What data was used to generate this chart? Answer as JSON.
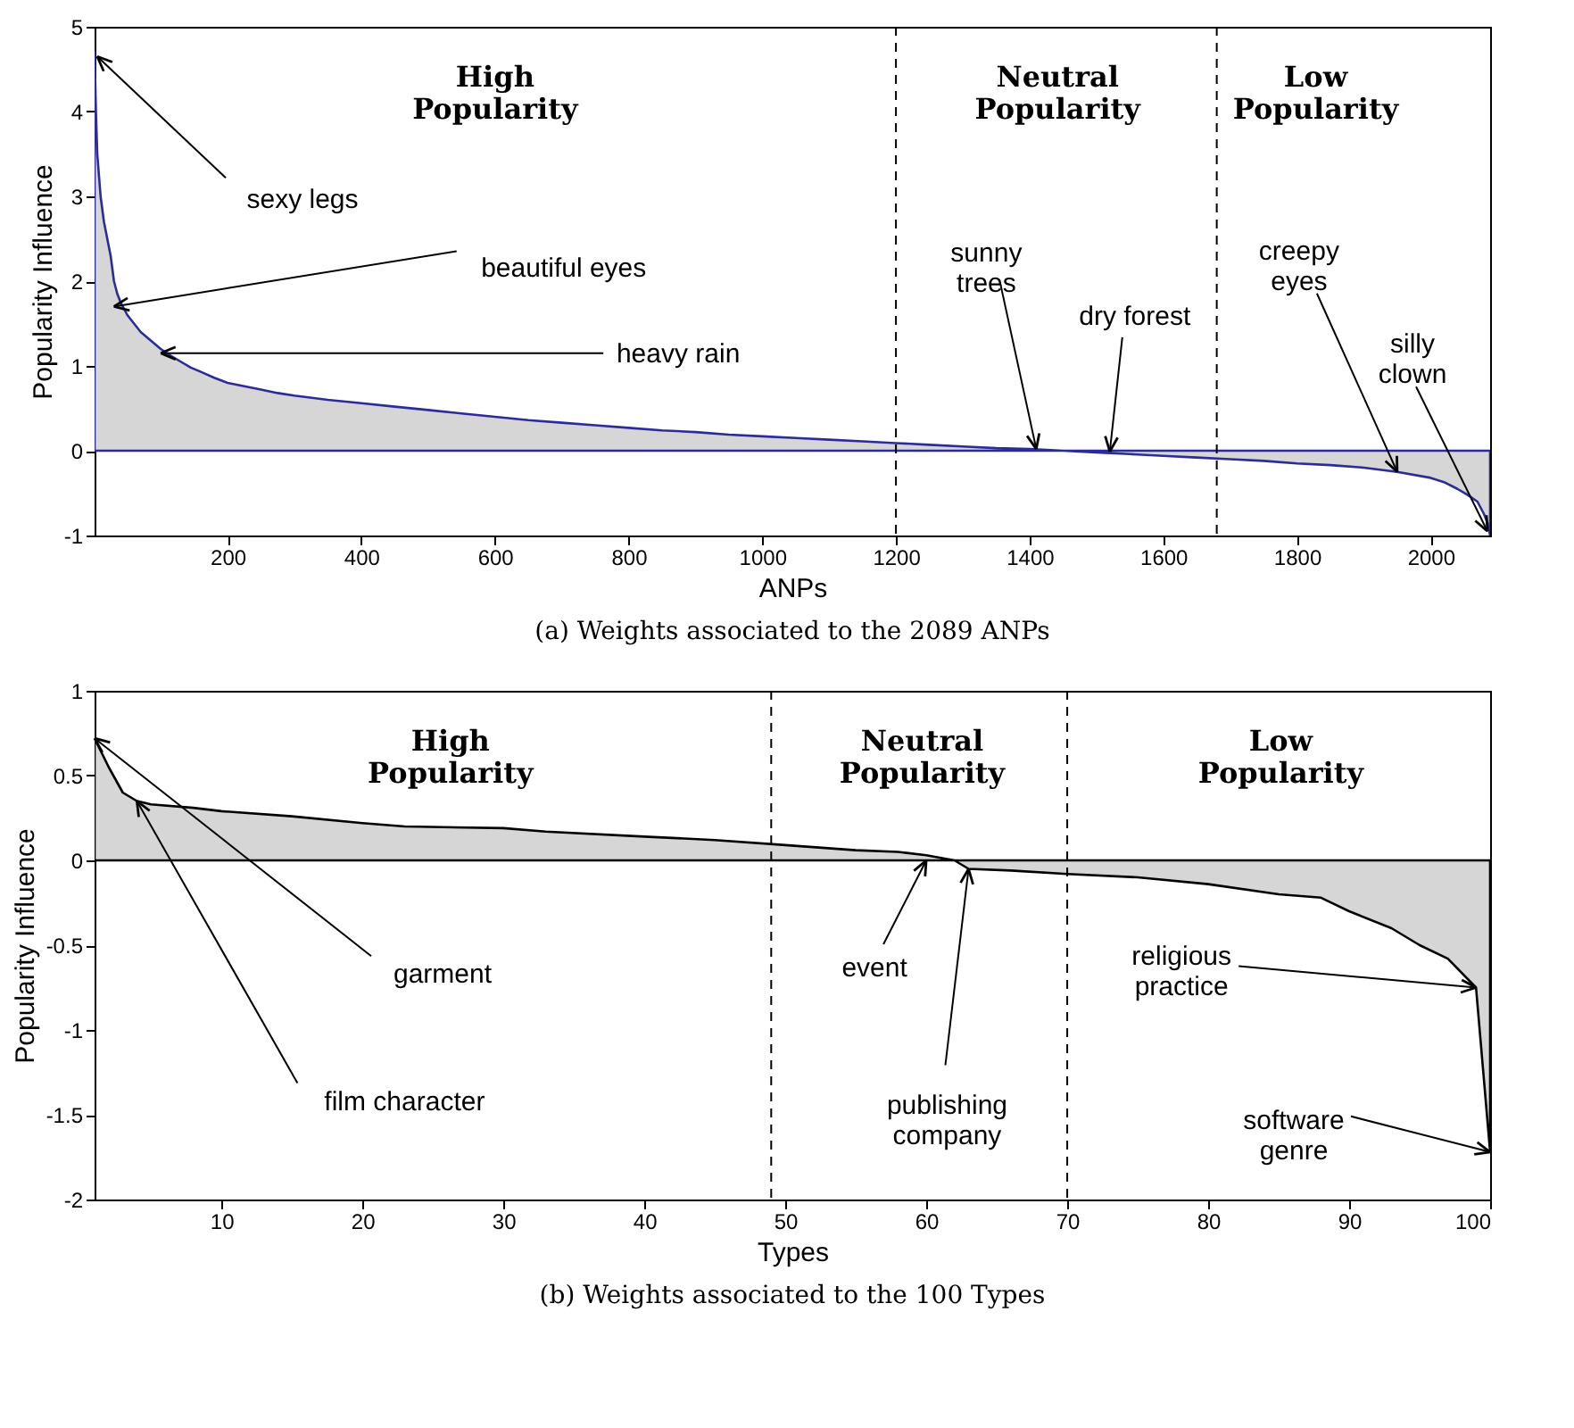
{
  "chart_data": [
    {
      "type": "area",
      "title": "(a) Weights associated to the 2089 ANPs",
      "xlabel": "ANPs",
      "ylabel": "Popularity Influence",
      "xlim": [
        1,
        2089
      ],
      "xticks": [
        200,
        400,
        600,
        800,
        1000,
        1200,
        1400,
        1600,
        1800,
        2000
      ],
      "ylim": [
        -1,
        5
      ],
      "yticks": [
        -1,
        0,
        1,
        2,
        3,
        4,
        5
      ],
      "x": [
        1,
        3,
        5,
        8,
        10,
        15,
        20,
        25,
        30,
        35,
        40,
        50,
        60,
        70,
        85,
        100,
        115,
        130,
        145,
        160,
        180,
        200,
        225,
        250,
        275,
        300,
        350,
        400,
        450,
        500,
        550,
        600,
        650,
        700,
        750,
        800,
        850,
        900,
        950,
        1000,
        1050,
        1100,
        1150,
        1200,
        1250,
        1300,
        1350,
        1400,
        1450,
        1500,
        1550,
        1600,
        1650,
        1700,
        1750,
        1800,
        1850,
        1900,
        1950,
        2000,
        2020,
        2040,
        2055,
        2070,
        2080,
        2085,
        2089
      ],
      "series": [
        {
          "color": "#2b2b9b",
          "values": [
            4.7,
            4.0,
            3.5,
            3.2,
            3.0,
            2.7,
            2.5,
            2.3,
            2.0,
            1.85,
            1.75,
            1.6,
            1.5,
            1.4,
            1.3,
            1.2,
            1.12,
            1.05,
            0.98,
            0.93,
            0.86,
            0.8,
            0.76,
            0.72,
            0.68,
            0.65,
            0.6,
            0.56,
            0.52,
            0.48,
            0.44,
            0.4,
            0.36,
            0.33,
            0.3,
            0.27,
            0.24,
            0.22,
            0.19,
            0.17,
            0.15,
            0.13,
            0.11,
            0.09,
            0.07,
            0.05,
            0.03,
            0.02,
            0.0,
            -0.02,
            -0.04,
            -0.06,
            -0.08,
            -0.1,
            -0.12,
            -0.15,
            -0.17,
            -0.2,
            -0.25,
            -0.32,
            -0.37,
            -0.45,
            -0.52,
            -0.6,
            -0.75,
            -0.85,
            -1.0
          ]
        }
      ],
      "ref_lines": [
        {
          "axis": "x",
          "value": 1200,
          "line_style": "dashed"
        },
        {
          "axis": "x",
          "value": 1680,
          "line_style": "dashed"
        }
      ],
      "annotations": [
        "High Popularity",
        "Neutral Popularity",
        "Low Popularity",
        {
          "text": "sexy legs",
          "x": 5,
          "y": 4.65
        },
        {
          "text": "beautiful eyes",
          "x": 30,
          "y": 1.7
        },
        {
          "text": "heavy rain",
          "x": 100,
          "y": 1.15
        },
        {
          "text": "sunny trees",
          "x": 1410,
          "y": 0.02
        },
        {
          "text": "dry forest",
          "x": 1520,
          "y": -0.01
        },
        {
          "text": "creepy eyes",
          "x": 1950,
          "y": -0.25
        },
        {
          "text": "silly clown",
          "x": 2085,
          "y": -0.95
        }
      ],
      "grid": false
    },
    {
      "type": "area",
      "title": "(b) Weights associated to the 100 Types",
      "xlabel": "Types",
      "ylabel": "Popularity Influence",
      "xlim": [
        1,
        100
      ],
      "xticks": [
        10,
        20,
        30,
        40,
        50,
        60,
        70,
        80,
        90,
        100
      ],
      "ylim": [
        -2,
        1
      ],
      "yticks": [
        -2,
        -1.5,
        -1,
        -0.5,
        0,
        0.5,
        1
      ],
      "x": [
        1,
        2,
        3,
        4,
        5,
        8,
        10,
        15,
        20,
        23,
        30,
        33,
        40,
        45,
        50,
        55,
        58,
        60,
        62,
        63,
        66,
        70,
        75,
        80,
        85,
        88,
        90,
        93,
        95,
        97,
        99,
        100
      ],
      "series": [
        {
          "color": "#000000",
          "values": [
            0.72,
            0.55,
            0.4,
            0.35,
            0.33,
            0.31,
            0.29,
            0.26,
            0.22,
            0.2,
            0.19,
            0.17,
            0.14,
            0.12,
            0.09,
            0.06,
            0.05,
            0.03,
            0.0,
            -0.05,
            -0.06,
            -0.08,
            -0.1,
            -0.14,
            -0.2,
            -0.22,
            -0.3,
            -0.4,
            -0.5,
            -0.58,
            -0.75,
            -1.72
          ]
        }
      ],
      "ref_lines": [
        {
          "axis": "x",
          "value": 49,
          "line_style": "dashed"
        },
        {
          "axis": "x",
          "value": 70,
          "line_style": "dashed"
        }
      ],
      "annotations": [
        "High Popularity",
        "Neutral Popularity",
        "Low Popularity",
        {
          "text": "garment",
          "x": 1,
          "y": 0.72
        },
        {
          "text": "film character",
          "x": 4,
          "y": 0.35
        },
        {
          "text": "event",
          "x": 60,
          "y": 0.0
        },
        {
          "text": "publishing company",
          "x": 63,
          "y": -0.05
        },
        {
          "text": "religious practice",
          "x": 99,
          "y": -0.75
        },
        {
          "text": "software genre",
          "x": 100,
          "y": -1.72
        }
      ],
      "grid": false
    }
  ]
}
